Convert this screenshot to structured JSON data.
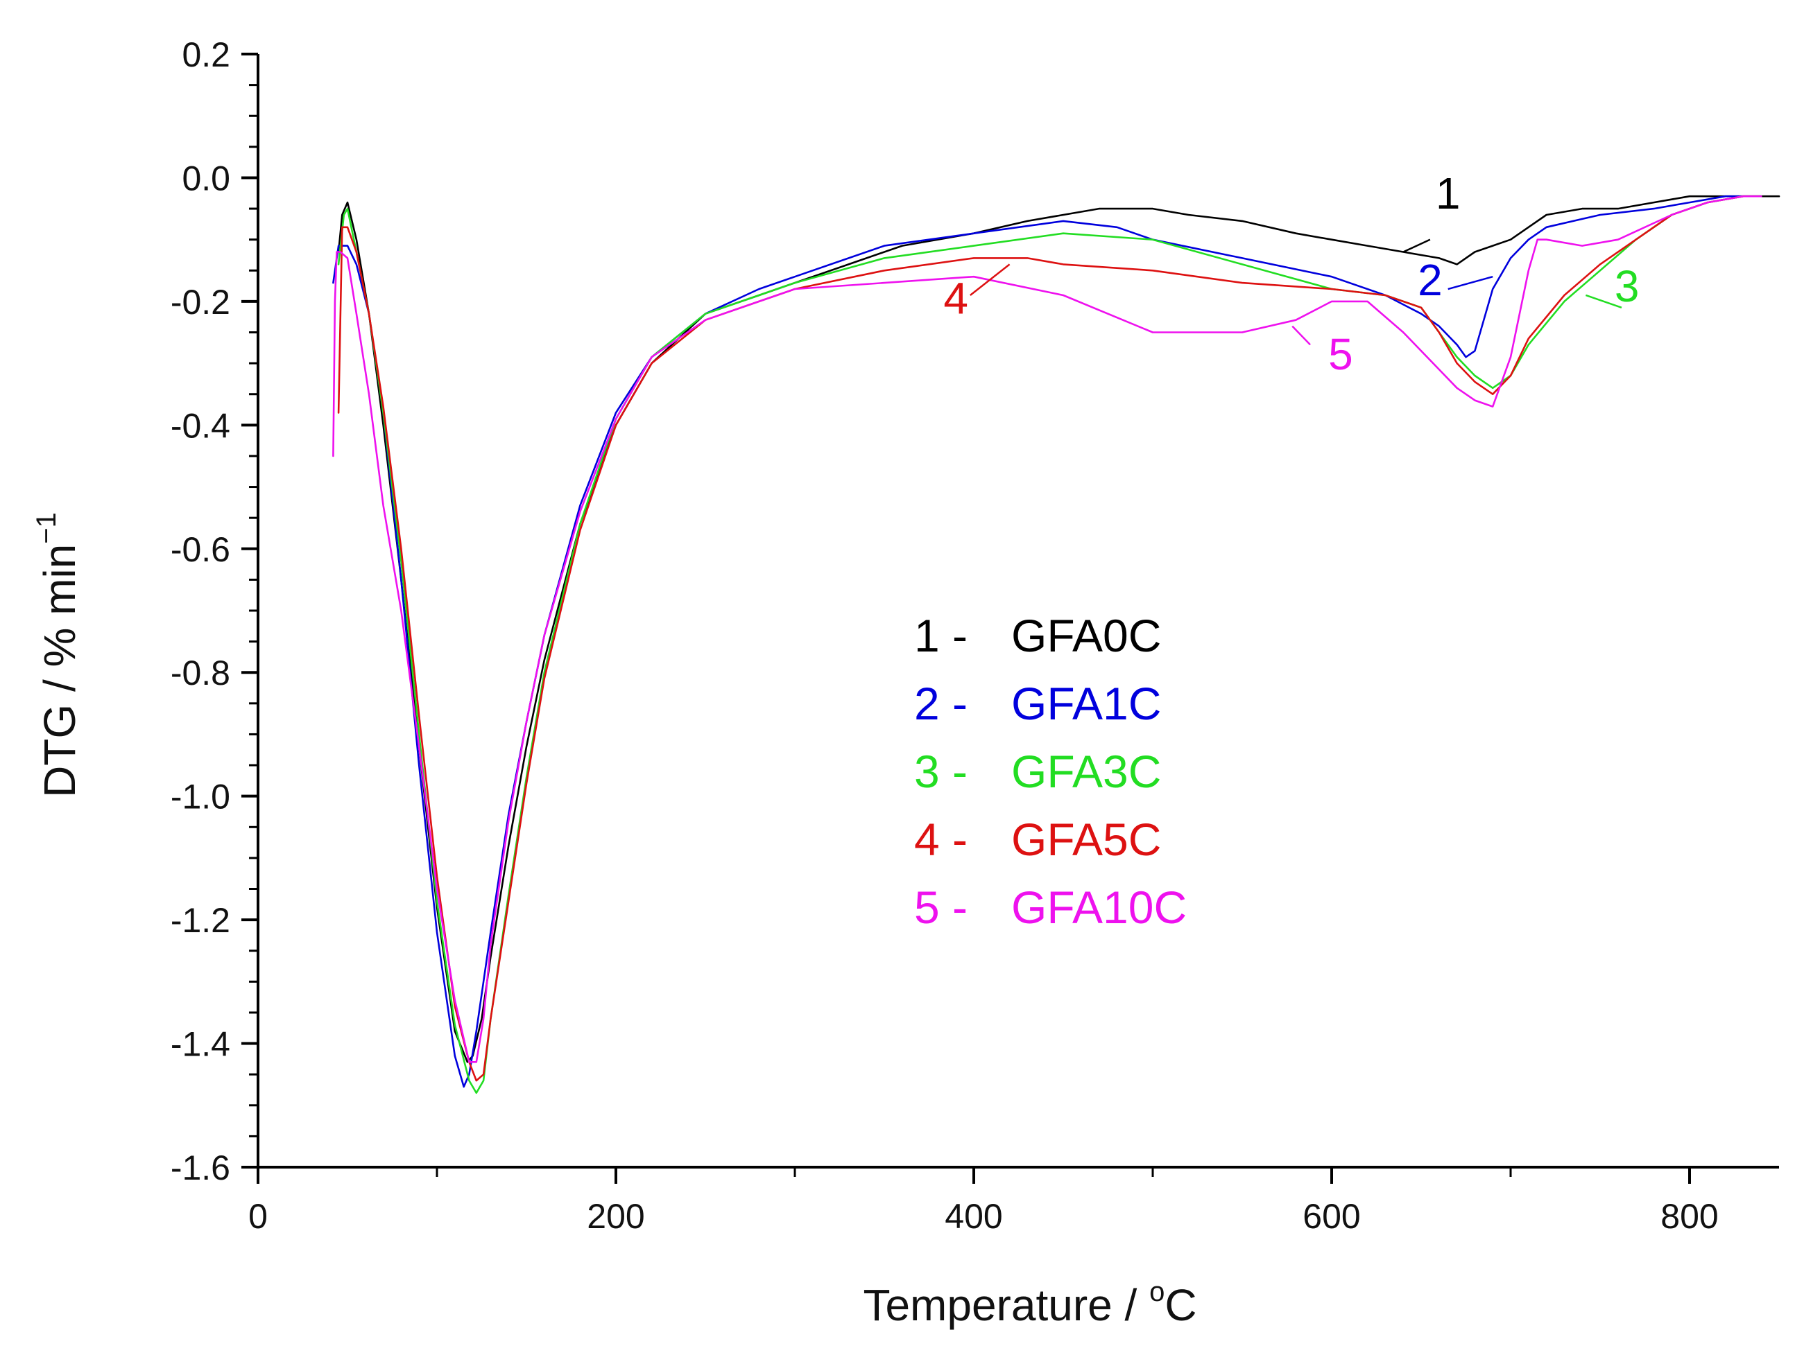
{
  "chart_data": {
    "type": "line",
    "title": "",
    "xlabel": "Temperature / °C",
    "xlabel_text": "Temperature / ",
    "xlabel_unit_sup": "o",
    "xlabel_unit": "C",
    "ylabel": "DTG / % min-1",
    "ylabel_text": "DTG / % min",
    "ylabel_sup": "−1",
    "xlim": [
      0,
      850
    ],
    "ylim": [
      -1.6,
      0.2
    ],
    "x_ticks": [
      {
        "value": 0,
        "label": "0"
      },
      {
        "value": 200,
        "label": "200"
      },
      {
        "value": 400,
        "label": "400"
      },
      {
        "value": 600,
        "label": "600"
      },
      {
        "value": 800,
        "label": "800"
      }
    ],
    "x_minor_ticks": [
      100,
      300,
      500,
      700
    ],
    "y_ticks": [
      {
        "value": 0.2,
        "label": "0.2"
      },
      {
        "value": 0.0,
        "label": "0.0"
      },
      {
        "value": -0.2,
        "label": "-0.2"
      },
      {
        "value": -0.4,
        "label": "-0.4"
      },
      {
        "value": -0.6,
        "label": "-0.6"
      },
      {
        "value": -0.8,
        "label": "-0.8"
      },
      {
        "value": -1.0,
        "label": "-1.0"
      },
      {
        "value": -1.2,
        "label": "-1.2"
      },
      {
        "value": -1.4,
        "label": "-1.4"
      },
      {
        "value": -1.6,
        "label": "-1.6"
      }
    ],
    "y_minor_step": 0.05,
    "grid": false,
    "legend": {
      "position": "center",
      "entries": [
        {
          "number": "1 -",
          "name": "GFA0C",
          "color": "#000000"
        },
        {
          "number": "2 -",
          "name": "GFA1C",
          "color": "#0000dd"
        },
        {
          "number": "3 -",
          "name": "GFA3C",
          "color": "#22dd22"
        },
        {
          "number": "4 -",
          "name": "GFA5C",
          "color": "#dd1111"
        },
        {
          "number": "5 -",
          "name": "GFA10C",
          "color": "#ee11ee"
        }
      ]
    },
    "series": [
      {
        "name": "GFA0C",
        "label": "1",
        "color": "#000000",
        "x": [
          45,
          47,
          50,
          55,
          62,
          70,
          80,
          90,
          100,
          110,
          117,
          120,
          125,
          130,
          140,
          150,
          160,
          180,
          200,
          220,
          250,
          280,
          300,
          330,
          360,
          400,
          430,
          450,
          470,
          490,
          500,
          520,
          550,
          580,
          600,
          620,
          640,
          660,
          670,
          680,
          690,
          700,
          710,
          720,
          740,
          760,
          780,
          800,
          820,
          830,
          840,
          850
        ],
        "y": [
          -0.12,
          -0.06,
          -0.04,
          -0.1,
          -0.22,
          -0.4,
          -0.65,
          -0.92,
          -1.18,
          -1.38,
          -1.43,
          -1.42,
          -1.36,
          -1.26,
          -1.08,
          -0.92,
          -0.78,
          -0.56,
          -0.4,
          -0.3,
          -0.22,
          -0.19,
          -0.17,
          -0.14,
          -0.11,
          -0.09,
          -0.07,
          -0.06,
          -0.05,
          -0.05,
          -0.05,
          -0.06,
          -0.07,
          -0.09,
          -0.1,
          -0.11,
          -0.12,
          -0.13,
          -0.14,
          -0.12,
          -0.11,
          -0.1,
          -0.08,
          -0.06,
          -0.05,
          -0.05,
          -0.04,
          -0.03,
          -0.03,
          -0.03,
          -0.03,
          -0.03
        ]
      },
      {
        "name": "GFA1C",
        "label": "2",
        "color": "#0000dd",
        "x": [
          42,
          45,
          50,
          55,
          62,
          70,
          80,
          90,
          100,
          110,
          115,
          118,
          122,
          130,
          140,
          150,
          160,
          180,
          200,
          220,
          250,
          280,
          300,
          350,
          400,
          450,
          480,
          500,
          550,
          600,
          630,
          650,
          660,
          670,
          675,
          680,
          685,
          690,
          700,
          710,
          720,
          750,
          780,
          800,
          820,
          840
        ],
        "y": [
          -0.17,
          -0.11,
          -0.11,
          -0.14,
          -0.22,
          -0.38,
          -0.65,
          -0.95,
          -1.22,
          -1.42,
          -1.47,
          -1.45,
          -1.38,
          -1.22,
          -1.03,
          -0.88,
          -0.74,
          -0.53,
          -0.38,
          -0.29,
          -0.22,
          -0.18,
          -0.16,
          -0.11,
          -0.09,
          -0.07,
          -0.08,
          -0.1,
          -0.13,
          -0.16,
          -0.19,
          -0.22,
          -0.24,
          -0.27,
          -0.29,
          -0.28,
          -0.23,
          -0.18,
          -0.13,
          -0.1,
          -0.08,
          -0.06,
          -0.05,
          -0.04,
          -0.03,
          -0.03
        ]
      },
      {
        "name": "GFA3C",
        "label": "3",
        "color": "#22dd22",
        "x": [
          45,
          48,
          50,
          55,
          62,
          70,
          80,
          90,
          100,
          110,
          118,
          122,
          126,
          130,
          140,
          150,
          160,
          180,
          200,
          220,
          250,
          280,
          300,
          350,
          400,
          450,
          500,
          550,
          600,
          630,
          650,
          660,
          670,
          680,
          690,
          700,
          710,
          730,
          750,
          770,
          790,
          810,
          830,
          840
        ],
        "y": [
          -0.14,
          -0.06,
          -0.05,
          -0.12,
          -0.22,
          -0.38,
          -0.62,
          -0.9,
          -1.17,
          -1.37,
          -1.46,
          -1.48,
          -1.46,
          -1.36,
          -1.16,
          -0.97,
          -0.8,
          -0.56,
          -0.39,
          -0.29,
          -0.22,
          -0.19,
          -0.17,
          -0.13,
          -0.11,
          -0.09,
          -0.1,
          -0.14,
          -0.18,
          -0.19,
          -0.21,
          -0.25,
          -0.29,
          -0.32,
          -0.34,
          -0.32,
          -0.27,
          -0.2,
          -0.15,
          -0.1,
          -0.06,
          -0.04,
          -0.03,
          -0.03
        ]
      },
      {
        "name": "GFA5C",
        "label": "4",
        "color": "#dd1111",
        "x": [
          45,
          47,
          50,
          55,
          62,
          70,
          80,
          90,
          100,
          110,
          118,
          122,
          126,
          130,
          140,
          150,
          160,
          180,
          200,
          220,
          250,
          280,
          300,
          350,
          400,
          430,
          450,
          500,
          550,
          600,
          630,
          650,
          660,
          670,
          680,
          690,
          700,
          710,
          730,
          750,
          770,
          790,
          810,
          830,
          840
        ],
        "y": [
          -0.38,
          -0.08,
          -0.08,
          -0.12,
          -0.22,
          -0.37,
          -0.6,
          -0.87,
          -1.13,
          -1.34,
          -1.43,
          -1.46,
          -1.45,
          -1.36,
          -1.17,
          -0.98,
          -0.81,
          -0.57,
          -0.4,
          -0.3,
          -0.23,
          -0.2,
          -0.18,
          -0.15,
          -0.13,
          -0.13,
          -0.14,
          -0.15,
          -0.17,
          -0.18,
          -0.19,
          -0.21,
          -0.25,
          -0.3,
          -0.33,
          -0.35,
          -0.32,
          -0.26,
          -0.19,
          -0.14,
          -0.1,
          -0.06,
          -0.04,
          -0.03,
          -0.03
        ]
      },
      {
        "name": "GFA10C",
        "label": "5",
        "color": "#ee11ee",
        "x": [
          42,
          43,
          44,
          46,
          50,
          55,
          62,
          70,
          80,
          90,
          100,
          110,
          118,
          122,
          126,
          130,
          140,
          150,
          160,
          180,
          200,
          220,
          250,
          280,
          300,
          350,
          400,
          450,
          500,
          550,
          580,
          600,
          620,
          640,
          660,
          670,
          680,
          690,
          700,
          710,
          715,
          720,
          740,
          760,
          790,
          810,
          830,
          840
        ],
        "y": [
          -0.45,
          -0.2,
          -0.12,
          -0.12,
          -0.13,
          -0.22,
          -0.35,
          -0.53,
          -0.7,
          -0.92,
          -1.15,
          -1.33,
          -1.43,
          -1.43,
          -1.36,
          -1.24,
          -1.04,
          -0.88,
          -0.74,
          -0.54,
          -0.39,
          -0.29,
          -0.23,
          -0.2,
          -0.18,
          -0.17,
          -0.16,
          -0.19,
          -0.25,
          -0.25,
          -0.23,
          -0.2,
          -0.2,
          -0.25,
          -0.31,
          -0.34,
          -0.36,
          -0.37,
          -0.29,
          -0.15,
          -0.1,
          -0.1,
          -0.11,
          -0.1,
          -0.06,
          -0.04,
          -0.03,
          -0.03
        ]
      }
    ],
    "curve_labels": [
      {
        "text": "1",
        "series": 0,
        "anchor": [
          665,
          -0.05
        ],
        "leader_from": [
          655,
          -0.1
        ],
        "leader_to": [
          640,
          -0.12
        ]
      },
      {
        "text": "2",
        "series": 1,
        "anchor": [
          655,
          -0.19
        ],
        "leader_from": [
          665,
          -0.18
        ],
        "leader_to": [
          690,
          -0.16
        ]
      },
      {
        "text": "3",
        "series": 2,
        "anchor": [
          765,
          -0.2
        ],
        "leader_from": [
          762,
          -0.21
        ],
        "leader_to": [
          742,
          -0.19
        ]
      },
      {
        "text": "4",
        "series": 3,
        "anchor": [
          390,
          -0.22
        ],
        "leader_from": [
          398,
          -0.19
        ],
        "leader_to": [
          420,
          -0.14
        ]
      },
      {
        "text": "5",
        "series": 4,
        "anchor": [
          605,
          -0.31
        ],
        "leader_from": [
          588,
          -0.27
        ],
        "leader_to": [
          578,
          -0.24
        ]
      }
    ]
  }
}
